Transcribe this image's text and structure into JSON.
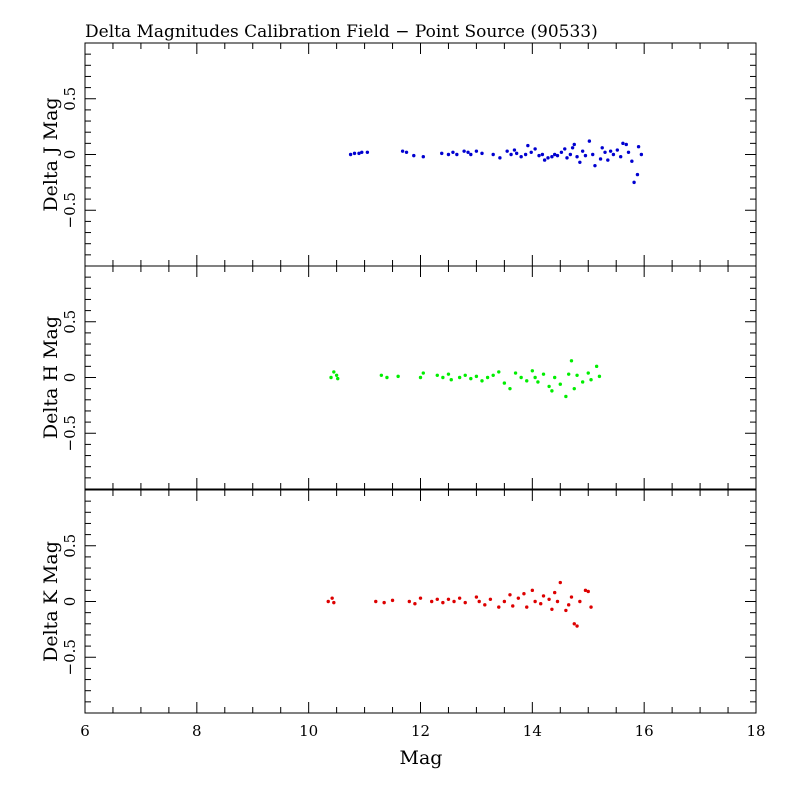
{
  "chart_data": {
    "type": "scatter",
    "title": "Delta Magnitudes Calibration Field − Point Source (90533)",
    "xlabel": "Mag",
    "xlim": [
      6,
      18
    ],
    "ylim": [
      -1,
      1
    ],
    "x_ticks": [
      6,
      8,
      10,
      12,
      14,
      16,
      18
    ],
    "x_tick_labels": [
      "6",
      "8",
      "10",
      "12",
      "14",
      "16",
      "18"
    ],
    "y_ticks": [
      -0.5,
      0,
      0.5
    ],
    "y_tick_labels": [
      "−0.5",
      "0",
      "0.5"
    ],
    "panels": [
      {
        "ylabel": "Delta J Mag",
        "color": "#0000d0",
        "points": [
          [
            10.75,
            0.0
          ],
          [
            10.82,
            0.01
          ],
          [
            10.9,
            0.01
          ],
          [
            10.95,
            0.02
          ],
          [
            11.05,
            0.02
          ],
          [
            11.68,
            0.03
          ],
          [
            11.75,
            0.02
          ],
          [
            11.88,
            -0.01
          ],
          [
            12.05,
            -0.02
          ],
          [
            12.38,
            0.01
          ],
          [
            12.5,
            0.0
          ],
          [
            12.58,
            0.02
          ],
          [
            12.65,
            0.0
          ],
          [
            12.78,
            0.03
          ],
          [
            12.85,
            0.02
          ],
          [
            12.9,
            0.0
          ],
          [
            13.0,
            0.03
          ],
          [
            13.1,
            0.01
          ],
          [
            13.3,
            0.0
          ],
          [
            13.42,
            -0.03
          ],
          [
            13.55,
            0.03
          ],
          [
            13.62,
            0.0
          ],
          [
            13.68,
            0.04
          ],
          [
            13.72,
            0.01
          ],
          [
            13.8,
            -0.02
          ],
          [
            13.88,
            0.0
          ],
          [
            13.92,
            0.08
          ],
          [
            13.98,
            0.02
          ],
          [
            14.05,
            0.05
          ],
          [
            14.12,
            -0.01
          ],
          [
            14.18,
            0.0
          ],
          [
            14.22,
            -0.05
          ],
          [
            14.28,
            -0.03
          ],
          [
            14.35,
            -0.02
          ],
          [
            14.4,
            0.0
          ],
          [
            14.45,
            -0.01
          ],
          [
            14.52,
            0.02
          ],
          [
            14.58,
            0.05
          ],
          [
            14.62,
            -0.03
          ],
          [
            14.68,
            0.0
          ],
          [
            14.72,
            0.06
          ],
          [
            14.75,
            0.09
          ],
          [
            14.8,
            -0.02
          ],
          [
            14.85,
            -0.07
          ],
          [
            14.9,
            0.03
          ],
          [
            14.95,
            -0.01
          ],
          [
            15.02,
            0.12
          ],
          [
            15.08,
            0.0
          ],
          [
            15.12,
            -0.1
          ],
          [
            15.22,
            -0.04
          ],
          [
            15.25,
            0.06
          ],
          [
            15.3,
            0.02
          ],
          [
            15.35,
            -0.05
          ],
          [
            15.4,
            0.03
          ],
          [
            15.45,
            0.0
          ],
          [
            15.52,
            0.04
          ],
          [
            15.58,
            -0.02
          ],
          [
            15.62,
            0.1
          ],
          [
            15.68,
            0.09
          ],
          [
            15.72,
            0.02
          ],
          [
            15.78,
            -0.06
          ],
          [
            15.82,
            -0.25
          ],
          [
            15.88,
            -0.18
          ],
          [
            15.9,
            0.07
          ],
          [
            15.95,
            0.0
          ]
        ]
      },
      {
        "ylabel": "Delta H Mag",
        "color": "#00ee00",
        "points": [
          [
            10.4,
            0.0
          ],
          [
            10.45,
            0.05
          ],
          [
            10.5,
            0.02
          ],
          [
            10.52,
            -0.01
          ],
          [
            11.3,
            0.02
          ],
          [
            11.4,
            0.0
          ],
          [
            11.6,
            0.01
          ],
          [
            12.0,
            0.0
          ],
          [
            12.05,
            0.04
          ],
          [
            12.3,
            0.02
          ],
          [
            12.4,
            0.0
          ],
          [
            12.5,
            0.03
          ],
          [
            12.55,
            -0.02
          ],
          [
            12.7,
            0.0
          ],
          [
            12.8,
            0.02
          ],
          [
            12.9,
            -0.01
          ],
          [
            13.0,
            0.01
          ],
          [
            13.1,
            -0.03
          ],
          [
            13.2,
            0.0
          ],
          [
            13.3,
            0.02
          ],
          [
            13.4,
            0.05
          ],
          [
            13.5,
            -0.05
          ],
          [
            13.6,
            -0.1
          ],
          [
            13.7,
            0.04
          ],
          [
            13.8,
            0.0
          ],
          [
            13.9,
            -0.03
          ],
          [
            14.0,
            0.06
          ],
          [
            14.05,
            0.0
          ],
          [
            14.1,
            -0.04
          ],
          [
            14.2,
            0.03
          ],
          [
            14.3,
            -0.08
          ],
          [
            14.35,
            -0.12
          ],
          [
            14.4,
            0.0
          ],
          [
            14.5,
            -0.06
          ],
          [
            14.6,
            -0.17
          ],
          [
            14.65,
            0.03
          ],
          [
            14.7,
            0.15
          ],
          [
            14.75,
            -0.1
          ],
          [
            14.8,
            0.02
          ],
          [
            14.9,
            -0.04
          ],
          [
            15.0,
            0.04
          ],
          [
            15.05,
            -0.02
          ],
          [
            15.15,
            0.1
          ],
          [
            15.2,
            0.01
          ]
        ]
      },
      {
        "ylabel": "Delta K Mag",
        "color": "#dd0000",
        "points": [
          [
            10.35,
            0.0
          ],
          [
            10.42,
            0.03
          ],
          [
            10.45,
            -0.01
          ],
          [
            11.2,
            0.0
          ],
          [
            11.35,
            -0.01
          ],
          [
            11.5,
            0.01
          ],
          [
            11.8,
            0.0
          ],
          [
            11.9,
            -0.02
          ],
          [
            12.0,
            0.03
          ],
          [
            12.2,
            0.0
          ],
          [
            12.3,
            0.02
          ],
          [
            12.4,
            -0.01
          ],
          [
            12.5,
            0.02
          ],
          [
            12.6,
            0.0
          ],
          [
            12.7,
            0.03
          ],
          [
            12.8,
            -0.01
          ],
          [
            13.0,
            0.04
          ],
          [
            13.05,
            0.0
          ],
          [
            13.15,
            -0.03
          ],
          [
            13.25,
            0.02
          ],
          [
            13.4,
            -0.05
          ],
          [
            13.5,
            0.0
          ],
          [
            13.6,
            0.06
          ],
          [
            13.65,
            -0.04
          ],
          [
            13.75,
            0.03
          ],
          [
            13.85,
            0.07
          ],
          [
            13.9,
            -0.05
          ],
          [
            14.0,
            0.1
          ],
          [
            14.05,
            0.0
          ],
          [
            14.15,
            -0.02
          ],
          [
            14.2,
            0.05
          ],
          [
            14.3,
            0.02
          ],
          [
            14.35,
            -0.07
          ],
          [
            14.4,
            0.08
          ],
          [
            14.45,
            0.0
          ],
          [
            14.5,
            0.17
          ],
          [
            14.6,
            -0.08
          ],
          [
            14.65,
            -0.03
          ],
          [
            14.7,
            0.04
          ],
          [
            14.75,
            -0.2
          ],
          [
            14.8,
            -0.22
          ],
          [
            14.85,
            0.0
          ],
          [
            14.95,
            0.1
          ],
          [
            15.0,
            0.09
          ],
          [
            15.05,
            -0.05
          ]
        ]
      }
    ]
  }
}
